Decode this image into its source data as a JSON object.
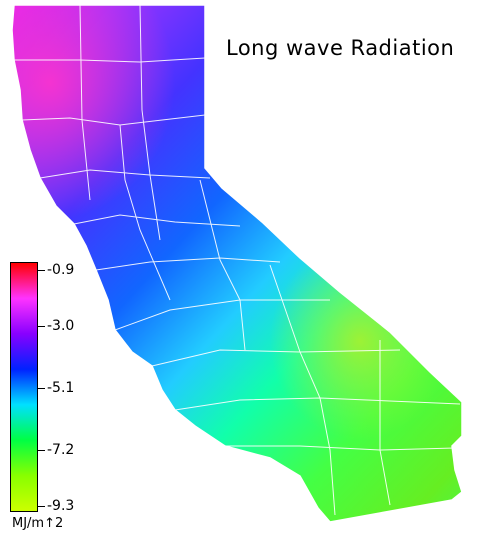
{
  "title": "Long wave Radiation",
  "legend": {
    "ticks": [
      "-0.9",
      "-3.0",
      "-5.1",
      "-7.2",
      "-9.3"
    ],
    "unit": "MJ/m↑2",
    "colors": [
      "#ff0000",
      "#ff33ff",
      "#8800ff",
      "#0022ff",
      "#00e0ff",
      "#00ff44",
      "#88ff00",
      "#ccff00"
    ]
  }
}
